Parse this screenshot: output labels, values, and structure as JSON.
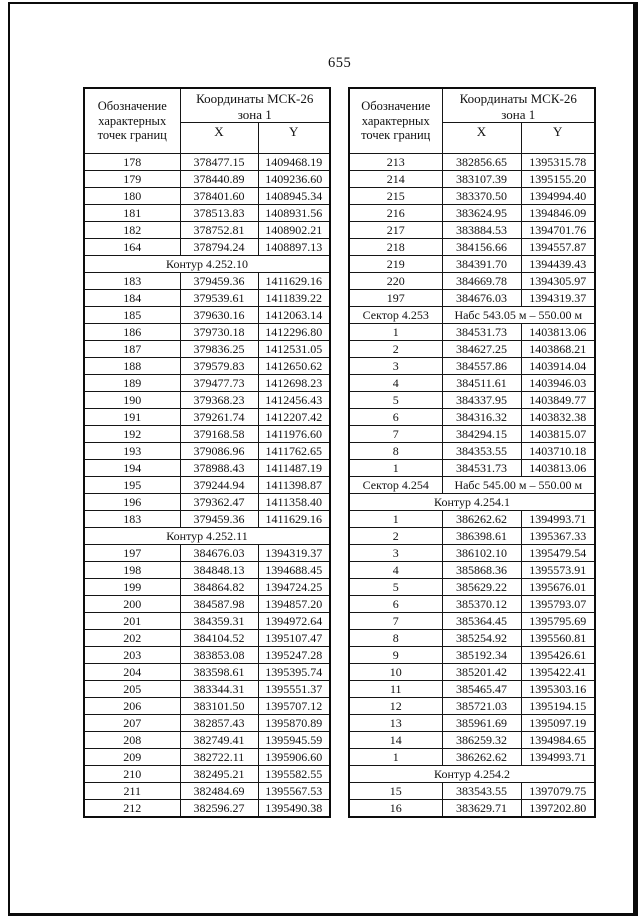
{
  "page": {
    "number": "655"
  },
  "header": {
    "col1_lines": [
      "Обозначение",
      "характерных",
      "точек границ"
    ],
    "coords_line1": "Координаты МСК-26",
    "coords_line2": "зона 1",
    "x_label": "X",
    "y_label": "Y"
  },
  "left_table": {
    "rows": [
      {
        "type": "data",
        "id": "178",
        "x": "378477.15",
        "y": "1409468.19"
      },
      {
        "type": "data",
        "id": "179",
        "x": "378440.89",
        "y": "1409236.60"
      },
      {
        "type": "data",
        "id": "180",
        "x": "378401.60",
        "y": "1408945.34"
      },
      {
        "type": "data",
        "id": "181",
        "x": "378513.83",
        "y": "1408931.56"
      },
      {
        "type": "data",
        "id": "182",
        "x": "378752.81",
        "y": "1408902.21"
      },
      {
        "type": "data",
        "id": "164",
        "x": "378794.24",
        "y": "1408897.13"
      },
      {
        "type": "span",
        "label": "Контур 4.252.10"
      },
      {
        "type": "data",
        "id": "183",
        "x": "379459.36",
        "y": "1411629.16"
      },
      {
        "type": "data",
        "id": "184",
        "x": "379539.61",
        "y": "1411839.22"
      },
      {
        "type": "data",
        "id": "185",
        "x": "379630.16",
        "y": "1412063.14"
      },
      {
        "type": "data",
        "id": "186",
        "x": "379730.18",
        "y": "1412296.80"
      },
      {
        "type": "data",
        "id": "187",
        "x": "379836.25",
        "y": "1412531.05"
      },
      {
        "type": "data",
        "id": "188",
        "x": "379579.83",
        "y": "1412650.62"
      },
      {
        "type": "data",
        "id": "189",
        "x": "379477.73",
        "y": "1412698.23"
      },
      {
        "type": "data",
        "id": "190",
        "x": "379368.23",
        "y": "1412456.43"
      },
      {
        "type": "data",
        "id": "191",
        "x": "379261.74",
        "y": "1412207.42"
      },
      {
        "type": "data",
        "id": "192",
        "x": "379168.58",
        "y": "1411976.60"
      },
      {
        "type": "data",
        "id": "193",
        "x": "379086.96",
        "y": "1411762.65"
      },
      {
        "type": "data",
        "id": "194",
        "x": "378988.43",
        "y": "1411487.19"
      },
      {
        "type": "data",
        "id": "195",
        "x": "379244.94",
        "y": "1411398.87"
      },
      {
        "type": "data",
        "id": "196",
        "x": "379362.47",
        "y": "1411358.40"
      },
      {
        "type": "data",
        "id": "183",
        "x": "379459.36",
        "y": "1411629.16"
      },
      {
        "type": "span",
        "label": "Контур 4.252.11"
      },
      {
        "type": "data",
        "id": "197",
        "x": "384676.03",
        "y": "1394319.37"
      },
      {
        "type": "data",
        "id": "198",
        "x": "384848.13",
        "y": "1394688.45"
      },
      {
        "type": "data",
        "id": "199",
        "x": "384864.82",
        "y": "1394724.25"
      },
      {
        "type": "data",
        "id": "200",
        "x": "384587.98",
        "y": "1394857.20"
      },
      {
        "type": "data",
        "id": "201",
        "x": "384359.31",
        "y": "1394972.64"
      },
      {
        "type": "data",
        "id": "202",
        "x": "384104.52",
        "y": "1395107.47"
      },
      {
        "type": "data",
        "id": "203",
        "x": "383853.08",
        "y": "1395247.28"
      },
      {
        "type": "data",
        "id": "204",
        "x": "383598.61",
        "y": "1395395.74"
      },
      {
        "type": "data",
        "id": "205",
        "x": "383344.31",
        "y": "1395551.37"
      },
      {
        "type": "data",
        "id": "206",
        "x": "383101.50",
        "y": "1395707.12"
      },
      {
        "type": "data",
        "id": "207",
        "x": "382857.43",
        "y": "1395870.89"
      },
      {
        "type": "data",
        "id": "208",
        "x": "382749.41",
        "y": "1395945.59"
      },
      {
        "type": "data",
        "id": "209",
        "x": "382722.11",
        "y": "1395906.60"
      },
      {
        "type": "data",
        "id": "210",
        "x": "382495.21",
        "y": "1395582.55"
      },
      {
        "type": "data",
        "id": "211",
        "x": "382484.69",
        "y": "1395567.53"
      },
      {
        "type": "data",
        "id": "212",
        "x": "382596.27",
        "y": "1395490.38"
      }
    ]
  },
  "right_table": {
    "rows": [
      {
        "type": "data",
        "id": "213",
        "x": "382856.65",
        "y": "1395315.78"
      },
      {
        "type": "data",
        "id": "214",
        "x": "383107.39",
        "y": "1395155.20"
      },
      {
        "type": "data",
        "id": "215",
        "x": "383370.50",
        "y": "1394994.40"
      },
      {
        "type": "data",
        "id": "216",
        "x": "383624.95",
        "y": "1394846.09"
      },
      {
        "type": "data",
        "id": "217",
        "x": "383884.53",
        "y": "1394701.76"
      },
      {
        "type": "data",
        "id": "218",
        "x": "384156.66",
        "y": "1394557.87"
      },
      {
        "type": "data",
        "id": "219",
        "x": "384391.70",
        "y": "1394439.43"
      },
      {
        "type": "data",
        "id": "220",
        "x": "384669.78",
        "y": "1394305.97"
      },
      {
        "type": "data",
        "id": "197",
        "x": "384676.03",
        "y": "1394319.37"
      },
      {
        "type": "sector",
        "label": "Сектор 4.253",
        "value": "Набс 543.05 м – 550.00 м"
      },
      {
        "type": "data",
        "id": "1",
        "x": "384531.73",
        "y": "1403813.06"
      },
      {
        "type": "data",
        "id": "2",
        "x": "384627.25",
        "y": "1403868.21"
      },
      {
        "type": "data",
        "id": "3",
        "x": "384557.86",
        "y": "1403914.04"
      },
      {
        "type": "data",
        "id": "4",
        "x": "384511.61",
        "y": "1403946.03"
      },
      {
        "type": "data",
        "id": "5",
        "x": "384337.95",
        "y": "1403849.77"
      },
      {
        "type": "data",
        "id": "6",
        "x": "384316.32",
        "y": "1403832.38"
      },
      {
        "type": "data",
        "id": "7",
        "x": "384294.15",
        "y": "1403815.07"
      },
      {
        "type": "data",
        "id": "8",
        "x": "384353.55",
        "y": "1403710.18"
      },
      {
        "type": "data",
        "id": "1",
        "x": "384531.73",
        "y": "1403813.06"
      },
      {
        "type": "sector",
        "label": "Сектор 4.254",
        "value": "Набс 545.00 м – 550.00 м"
      },
      {
        "type": "span",
        "label": "Контур 4.254.1"
      },
      {
        "type": "data",
        "id": "1",
        "x": "386262.62",
        "y": "1394993.71"
      },
      {
        "type": "data",
        "id": "2",
        "x": "386398.61",
        "y": "1395367.33"
      },
      {
        "type": "data",
        "id": "3",
        "x": "386102.10",
        "y": "1395479.54"
      },
      {
        "type": "data",
        "id": "4",
        "x": "385868.36",
        "y": "1395573.91"
      },
      {
        "type": "data",
        "id": "5",
        "x": "385629.22",
        "y": "1395676.01"
      },
      {
        "type": "data",
        "id": "6",
        "x": "385370.12",
        "y": "1395793.07"
      },
      {
        "type": "data",
        "id": "7",
        "x": "385364.45",
        "y": "1395795.69"
      },
      {
        "type": "data",
        "id": "8",
        "x": "385254.92",
        "y": "1395560.81"
      },
      {
        "type": "data",
        "id": "9",
        "x": "385192.34",
        "y": "1395426.61"
      },
      {
        "type": "data",
        "id": "10",
        "x": "385201.42",
        "y": "1395422.41"
      },
      {
        "type": "data",
        "id": "11",
        "x": "385465.47",
        "y": "1395303.16"
      },
      {
        "type": "data",
        "id": "12",
        "x": "385721.03",
        "y": "1395194.15"
      },
      {
        "type": "data",
        "id": "13",
        "x": "385961.69",
        "y": "1395097.19"
      },
      {
        "type": "data",
        "id": "14",
        "x": "386259.32",
        "y": "1394984.65"
      },
      {
        "type": "data",
        "id": "1",
        "x": "386262.62",
        "y": "1394993.71"
      },
      {
        "type": "span",
        "label": "Контур 4.254.2"
      },
      {
        "type": "data",
        "id": "15",
        "x": "383543.55",
        "y": "1397079.75"
      },
      {
        "type": "data",
        "id": "16",
        "x": "383629.71",
        "y": "1397202.80"
      }
    ]
  }
}
